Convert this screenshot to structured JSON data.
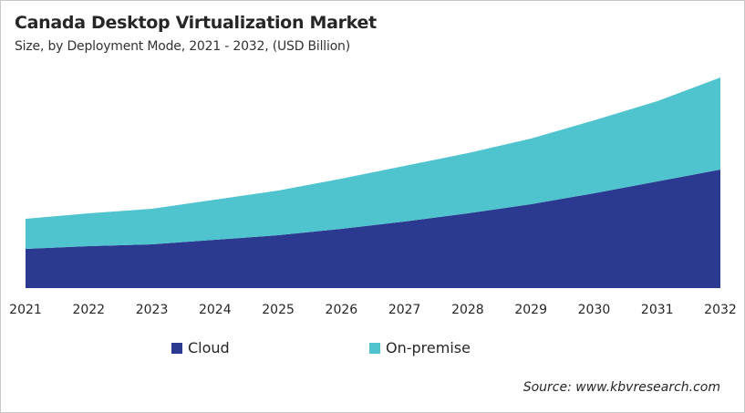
{
  "chart_data": {
    "type": "area",
    "stacked": true,
    "title": "Canada Desktop Virtualization Market",
    "subtitle": "Size, by Deployment Mode, 2021 - 2032, (USD Billion)",
    "xlabel": "",
    "ylabel": "",
    "categories": [
      "2021",
      "2022",
      "2023",
      "2024",
      "2025",
      "2026",
      "2027",
      "2028",
      "2029",
      "2030",
      "2031",
      "2032"
    ],
    "series": [
      {
        "name": "Cloud",
        "color": "#2b3990",
        "values": [
          0.43,
          0.46,
          0.48,
          0.53,
          0.58,
          0.65,
          0.73,
          0.82,
          0.92,
          1.04,
          1.17,
          1.3
        ]
      },
      {
        "name": "On-premise",
        "color": "#4fc4cf",
        "values": [
          0.33,
          0.36,
          0.39,
          0.44,
          0.49,
          0.55,
          0.61,
          0.66,
          0.72,
          0.8,
          0.88,
          1.01
        ]
      }
    ],
    "ylim": [
      0,
      2.31
    ],
    "y_axis_visible": false,
    "grid": false,
    "legend_position": "bottom",
    "source": "Source: www.kbvresearch.com"
  }
}
